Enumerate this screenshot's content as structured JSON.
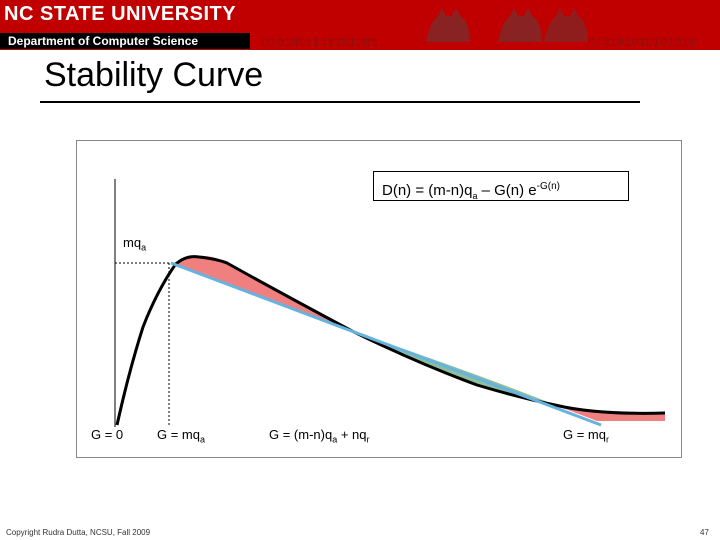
{
  "header": {
    "university": "NC STATE UNIVERSITY",
    "department": "Department of Computer Science",
    "binary_left": "0101001111101101",
    "binary_right": "010101010101010"
  },
  "title": "Stability Curve",
  "figure": {
    "equation": {
      "lhs": "D(n) = (m-n)q",
      "sub1": "a",
      "mid": " – G(n) e",
      "sup": "-G(n)"
    },
    "y_label": "mq",
    "y_label_sub": "a",
    "x_labels": [
      {
        "text": "G = 0"
      },
      {
        "text": "G = mq",
        "sub": "a"
      },
      {
        "text": "G = (m-n)q",
        "sub": "a",
        "tail": " + nq",
        "sub2": "r"
      },
      {
        "text": "G = mq",
        "sub": "r"
      }
    ],
    "colors": {
      "curve": "#000000",
      "line": "#66b3e0",
      "red_fill": "#f08080",
      "green_fill": "#8fbf9a"
    }
  },
  "footer": "Copyright Rudra Dutta, NCSU, Fall 2009",
  "page_number": "47"
}
